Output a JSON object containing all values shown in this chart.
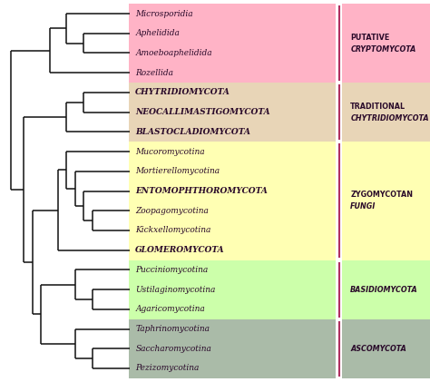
{
  "taxa": [
    "Microsporidia",
    "Aphelidida",
    "Amoeboaphelidida",
    "Rozellida",
    "CHYTRIDIOMYCOTA",
    "NEOCALLIMASTIGOMYCOTA",
    "BLASTOCLADIOMYCOTA",
    "Mucoromycotina",
    "Mortierellomycotina",
    "ENTOMOPHTHOROMYCOTA",
    "Zoopagomycotina",
    "Kickxellomycotina",
    "GLOMEROMYCOTA",
    "Pucciniomycotina",
    "Ustilaginomycotina",
    "Agaricomycotina",
    "Taphrinomycotina",
    "Saccharomycotina",
    "Pezizomycotina"
  ],
  "groups": [
    {
      "taxa_range": [
        0,
        3
      ],
      "bg_color": "#FFB3C6",
      "bar_color": "#B03060",
      "label1": "PUTATIVE",
      "label1_style": "bold",
      "label2": "CRYPTOMYCOTA",
      "label2_style": "bold_italic"
    },
    {
      "taxa_range": [
        4,
        6
      ],
      "bg_color": "#E8D5B7",
      "bar_color": "#B03060",
      "label1": "TRADITIONAL",
      "label1_style": "bold",
      "label2": "CHYTRIDIOMYCOTA",
      "label2_style": "bold_italic"
    },
    {
      "taxa_range": [
        7,
        12
      ],
      "bg_color": "#FFFFB3",
      "bar_color": "#B03060",
      "label1": "ZYGOMYCOTAN",
      "label1_style": "bold",
      "label2": "FUNGI",
      "label2_style": "bold"
    },
    {
      "taxa_range": [
        13,
        15
      ],
      "bg_color": "#CCFFAA",
      "bar_color": "#B03060",
      "label1": "",
      "label1_style": "bold",
      "label2": "BASIDIOMYCOTA",
      "label2_style": "bold_italic"
    },
    {
      "taxa_range": [
        16,
        18
      ],
      "bg_color": "#AABBA8",
      "bar_color": "#B03060",
      "label1": "",
      "label1_style": "bold",
      "label2": "ASCOMYCOTA",
      "label2_style": "bold_italic"
    }
  ],
  "text_color": "#2a0a2a",
  "line_color": "#111111",
  "bg_color": "#ffffff"
}
